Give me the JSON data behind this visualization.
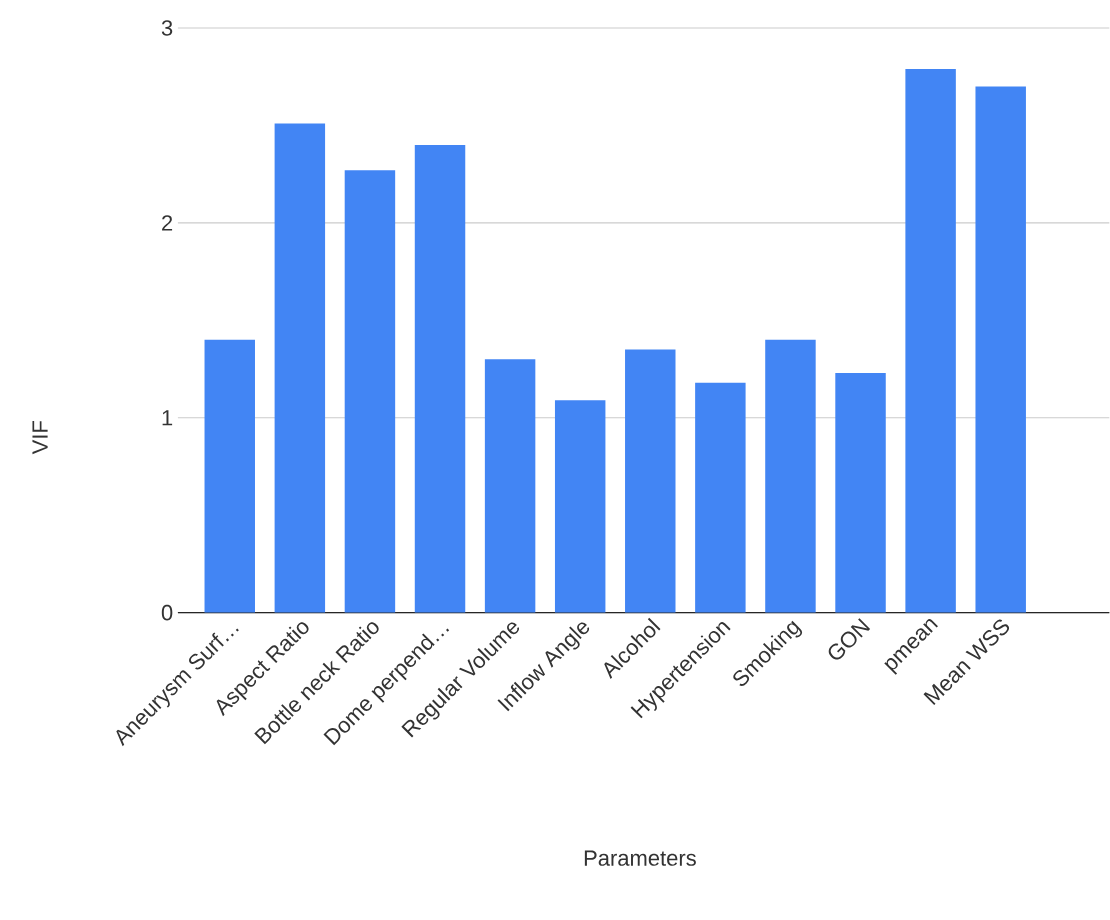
{
  "chart_data": {
    "type": "bar",
    "xlabel": "Parameters",
    "ylabel": "VIF",
    "categories": [
      "Aneurysm Surf…",
      "Aspect Ratio",
      "Bottle neck Ratio",
      "Dome perpend…",
      "Regular Volume",
      "Inflow Angle",
      "Alcohol",
      "Hypertension",
      "Smoking",
      "GON",
      "pmean",
      "Mean WSS"
    ],
    "values": [
      1.4,
      2.51,
      2.27,
      2.4,
      1.3,
      1.09,
      1.35,
      1.18,
      1.4,
      1.23,
      2.79,
      2.7
    ],
    "color": "#4285f4",
    "ylim": [
      0,
      3
    ],
    "yticks": [
      0,
      1,
      2,
      3
    ],
    "grid": "y"
  }
}
